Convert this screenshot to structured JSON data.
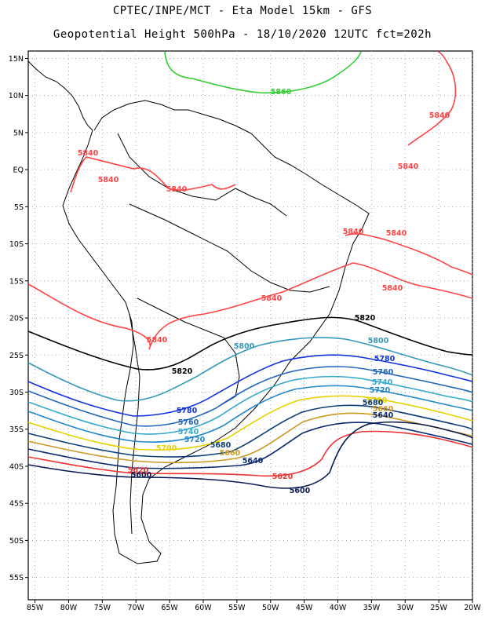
{
  "header": {
    "line1": "CPTEC/INPE/MCT -  Eta Model 15km - GFS",
    "line2": "Geopotential Height 500hPa - 18/10/2020 12UTC fct=202h"
  },
  "map": {
    "lon_range": [
      -86,
      -20
    ],
    "lat_range": [
      -58,
      16
    ],
    "lat_ticks": [
      "15N",
      "10N",
      "5N",
      "EQ",
      "5S",
      "10S",
      "15S",
      "20S",
      "25S",
      "30S",
      "35S",
      "40S",
      "45S",
      "50S",
      "55S"
    ],
    "lon_ticks": [
      "85W",
      "80W",
      "75W",
      "70W",
      "65W",
      "60W",
      "55W",
      "50W",
      "45W",
      "40W",
      "35W",
      "30W",
      "25W",
      "20W"
    ],
    "grid": "dotted",
    "contour_labels": [
      {
        "text": "5860",
        "color": "#33cc33"
      },
      {
        "text": "5840",
        "color": "#ff4444"
      },
      {
        "text": "5840",
        "color": "#ff4444"
      },
      {
        "text": "5840",
        "color": "#ff4444"
      },
      {
        "text": "5840",
        "color": "#ff4444"
      },
      {
        "text": "5840",
        "color": "#ff4444"
      },
      {
        "text": "5840",
        "color": "#ff4444"
      },
      {
        "text": "5840",
        "color": "#ff4444"
      },
      {
        "text": "5840",
        "color": "#ff4444"
      },
      {
        "text": "5840",
        "color": "#ff4444"
      },
      {
        "text": "5840",
        "color": "#ff4444"
      },
      {
        "text": "5820",
        "color": "#000000"
      },
      {
        "text": "5820",
        "color": "#000000"
      },
      {
        "text": "5800",
        "color": "#3399bb"
      },
      {
        "text": "5800",
        "color": "#3399bb"
      },
      {
        "text": "5780",
        "color": "#1133dd"
      },
      {
        "text": "5780",
        "color": "#1133dd"
      },
      {
        "text": "5760",
        "color": "#2266bb"
      },
      {
        "text": "5760",
        "color": "#2266bb"
      },
      {
        "text": "5740",
        "color": "#33aacc"
      },
      {
        "text": "5740",
        "color": "#33aacc"
      },
      {
        "text": "5720",
        "color": "#2288cc"
      },
      {
        "text": "5720",
        "color": "#2288cc"
      },
      {
        "text": "5700",
        "color": "#e6d200"
      },
      {
        "text": "5700",
        "color": "#e6d200"
      },
      {
        "text": "5680",
        "color": "#0d3d7a"
      },
      {
        "text": "5680",
        "color": "#0d3d7a"
      },
      {
        "text": "5660",
        "color": "#cc9922"
      },
      {
        "text": "5660",
        "color": "#cc9922"
      },
      {
        "text": "5640",
        "color": "#0a2a6e"
      },
      {
        "text": "5640",
        "color": "#0a2a6e"
      },
      {
        "text": "5620",
        "color": "#ee3333"
      },
      {
        "text": "5620",
        "color": "#ee3333"
      },
      {
        "text": "5600",
        "color": "#071a55"
      },
      {
        "text": "5600",
        "color": "#071a55"
      }
    ]
  }
}
